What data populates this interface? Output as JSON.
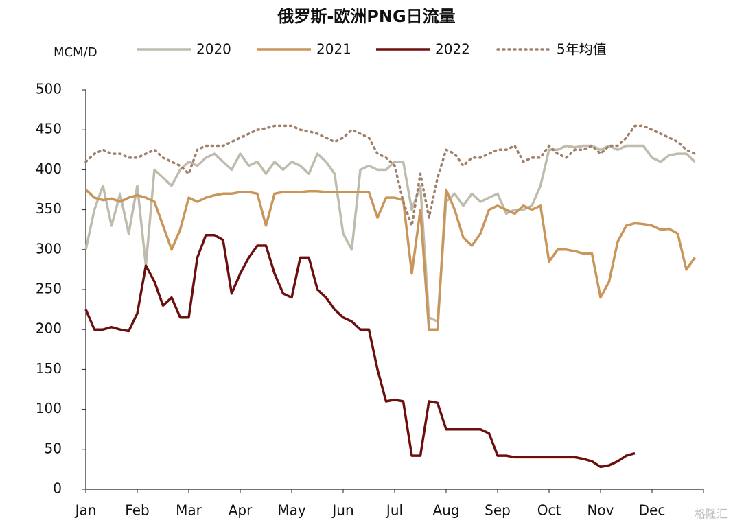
{
  "chart_data": {
    "type": "line",
    "title": "俄罗斯-欧洲PNG日流量",
    "y_label": "MCM/D",
    "watermark": "格隆汇",
    "categories": [
      "Jan",
      null,
      null,
      null,
      null,
      null,
      "Feb",
      null,
      null,
      null,
      null,
      null,
      "Mar",
      null,
      null,
      null,
      null,
      null,
      "Apr",
      null,
      null,
      null,
      null,
      null,
      "May",
      null,
      null,
      null,
      null,
      null,
      "Jun",
      null,
      null,
      null,
      null,
      null,
      "Jul",
      null,
      null,
      null,
      null,
      null,
      "Aug",
      null,
      null,
      null,
      null,
      null,
      "Sep",
      null,
      null,
      null,
      null,
      null,
      "Oct",
      null,
      null,
      null,
      null,
      null,
      "Nov",
      null,
      null,
      null,
      null,
      null,
      "Dec",
      null,
      null,
      null,
      null,
      null
    ],
    "ylim": [
      0,
      500
    ],
    "yticks": [
      0,
      50,
      100,
      150,
      200,
      250,
      300,
      350,
      400,
      450,
      500
    ],
    "grid": false,
    "legend": "top",
    "series": [
      {
        "name": "2020",
        "color": "#bfbcae",
        "style": "solid",
        "values": [
          300,
          350,
          380,
          330,
          370,
          320,
          380,
          280,
          400,
          390,
          380,
          400,
          410,
          405,
          415,
          420,
          410,
          400,
          420,
          405,
          410,
          395,
          410,
          400,
          410,
          405,
          395,
          420,
          410,
          395,
          320,
          300,
          400,
          405,
          400,
          400,
          410,
          410,
          350,
          380,
          215,
          210,
          360,
          370,
          355,
          370,
          360,
          365,
          370,
          345,
          350,
          350,
          355,
          380,
          425,
          425,
          430,
          428,
          430,
          430,
          425,
          430,
          425,
          430,
          430,
          430,
          415,
          410,
          418,
          420,
          420,
          410
        ]
      },
      {
        "name": "2021",
        "color": "#c8955a",
        "style": "solid",
        "values": [
          375,
          365,
          362,
          364,
          360,
          365,
          368,
          365,
          360,
          330,
          300,
          325,
          365,
          360,
          365,
          368,
          370,
          370,
          372,
          372,
          370,
          330,
          370,
          372,
          372,
          372,
          373,
          373,
          372,
          372,
          372,
          372,
          372,
          372,
          340,
          365,
          365,
          362,
          270,
          350,
          200,
          200,
          375,
          350,
          315,
          305,
          320,
          350,
          355,
          350,
          345,
          355,
          350,
          355,
          285,
          300,
          300,
          298,
          295,
          295,
          240,
          260,
          310,
          330,
          333,
          332,
          330,
          325,
          326,
          320,
          275,
          290
        ]
      },
      {
        "name": "2022",
        "color": "#6b0f0f",
        "style": "solid",
        "values": [
          225,
          200,
          200,
          203,
          200,
          198,
          220,
          280,
          260,
          230,
          240,
          215,
          215,
          290,
          318,
          318,
          312,
          245,
          270,
          290,
          305,
          305,
          270,
          245,
          240,
          290,
          290,
          250,
          240,
          225,
          215,
          210,
          200,
          200,
          150,
          110,
          112,
          110,
          42,
          42,
          110,
          108,
          75,
          75,
          75,
          75,
          75,
          70,
          42,
          42,
          40,
          40,
          40,
          40,
          40,
          40,
          40,
          40,
          38,
          35,
          28,
          30,
          35,
          42,
          45,
          null,
          null,
          null,
          null,
          null,
          null,
          null
        ]
      },
      {
        "name": "5年均值",
        "color": "#a0806a",
        "style": "dotted",
        "values": [
          410,
          420,
          425,
          420,
          420,
          415,
          415,
          420,
          425,
          415,
          410,
          405,
          395,
          425,
          430,
          430,
          430,
          435,
          440,
          445,
          450,
          452,
          455,
          455,
          455,
          450,
          448,
          445,
          440,
          435,
          440,
          450,
          445,
          440,
          420,
          415,
          405,
          360,
          330,
          395,
          340,
          390,
          425,
          420,
          405,
          415,
          415,
          420,
          425,
          425,
          430,
          410,
          415,
          415,
          430,
          420,
          415,
          425,
          425,
          430,
          420,
          430,
          430,
          440,
          455,
          455,
          450,
          445,
          440,
          435,
          425,
          420
        ]
      }
    ]
  }
}
